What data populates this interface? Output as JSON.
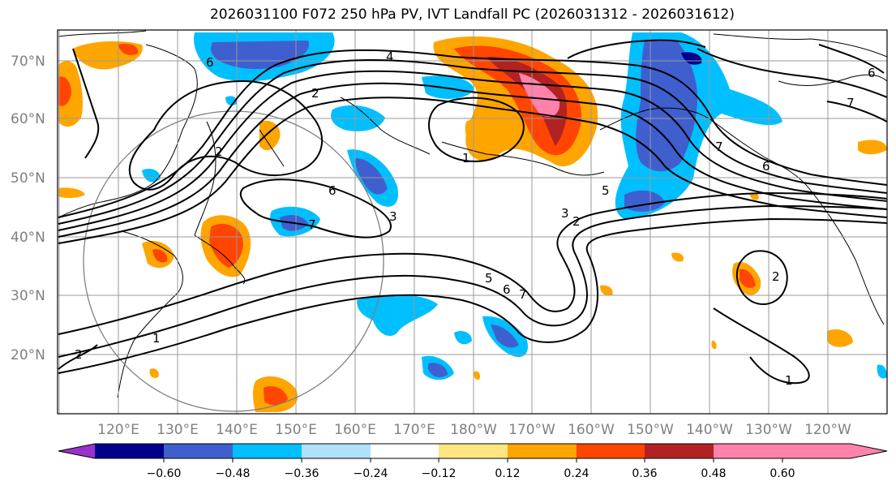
{
  "title": "2026031100 F072 250 hPa PV, IVT Landfall PC (2026031312 - 2026031612)",
  "lat_labels": [
    "70°N",
    "60°N",
    "50°N",
    "40°N",
    "30°N",
    "20°N"
  ],
  "lon_labels": [
    "120°E",
    "130°E",
    "140°E",
    "150°E",
    "160°E",
    "170°E",
    "180°W",
    "170°W",
    "160°W",
    "150°W",
    "140°W",
    "130°W",
    "120°W"
  ],
  "colorbar": {
    "colors": [
      "#9932cc",
      "#00008b",
      "#3f5fcf",
      "#00bfff",
      "#b0e0fa",
      "#ffffff",
      "#ffe680",
      "#ffa500",
      "#ff4500",
      "#b22222",
      "#ff82ab",
      "#ff82ab"
    ],
    "tick_labels": [
      "−0.60",
      "−0.48",
      "−0.36",
      "−0.24",
      "−0.12",
      "0.12",
      "0.24",
      "0.36",
      "0.48",
      "0.60"
    ]
  },
  "contour_labels": [
    "6",
    "4",
    "2",
    "2",
    "1",
    "6",
    "7",
    "3",
    "5",
    "6",
    "7",
    "5",
    "3",
    "2",
    "7",
    "6",
    "7",
    "1",
    "2",
    "1",
    "2",
    "6"
  ]
}
